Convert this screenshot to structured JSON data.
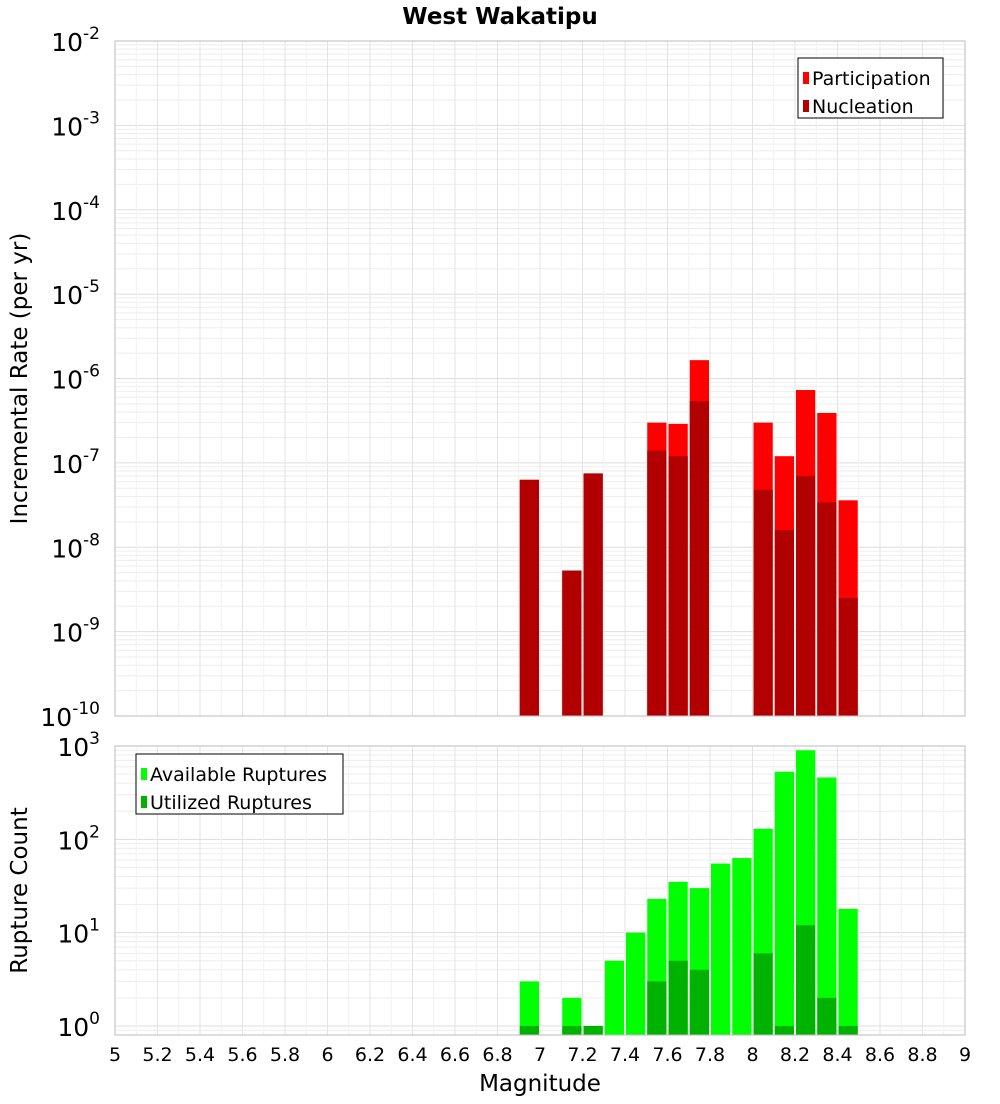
{
  "title": "West Wakatipu",
  "xlabel": "Magnitude",
  "x_ticks": [
    "5",
    "5.2",
    "5.4",
    "5.6",
    "5.8",
    "6",
    "6.2",
    "6.4",
    "6.6",
    "6.8",
    "7",
    "7.2",
    "7.4",
    "7.6",
    "7.8",
    "8",
    "8.2",
    "8.4",
    "8.6",
    "8.8",
    "9"
  ],
  "colors": {
    "participation": "#ff0000",
    "nucleation": "#b20000",
    "available": "#00ff00",
    "utilized": "#00b200",
    "grid": "#e8e8e8",
    "frame": "#bbbbbb"
  },
  "chart_data": [
    {
      "type": "bar",
      "title": "West Wakatipu",
      "xlabel": "",
      "ylabel": "Incremental Rate (per yr)",
      "y_scale": "log",
      "xlim": [
        5,
        9
      ],
      "ylim": [
        1e-10,
        0.01
      ],
      "y_tick_labels": [
        {
          "base": "10",
          "exp": "-10"
        },
        {
          "base": "10",
          "exp": "-9"
        },
        {
          "base": "10",
          "exp": "-8"
        },
        {
          "base": "10",
          "exp": "-7"
        },
        {
          "base": "10",
          "exp": "-6"
        },
        {
          "base": "10",
          "exp": "-5"
        },
        {
          "base": "10",
          "exp": "-4"
        },
        {
          "base": "10",
          "exp": "-3"
        },
        {
          "base": "10",
          "exp": "-2"
        }
      ],
      "legend_position": "top-right",
      "grid": true,
      "x": [
        6.95,
        7.15,
        7.25,
        7.55,
        7.65,
        7.75,
        8.05,
        8.15,
        8.25,
        8.35,
        8.45
      ],
      "series": [
        {
          "name": "Participation",
          "color": "#ff0000",
          "values": [
            6.3e-08,
            5.3e-09,
            7.5e-08,
            3e-07,
            2.9e-07,
            1.65e-06,
            3e-07,
            1.2e-07,
            7.3e-07,
            3.9e-07,
            3.6e-08
          ]
        },
        {
          "name": "Nucleation",
          "color": "#b20000",
          "values": [
            6.3e-08,
            5.3e-09,
            7.5e-08,
            1.4e-07,
            1.2e-07,
            5.4e-07,
            4.8e-08,
            1.6e-08,
            7e-08,
            3.4e-08,
            2.5e-09
          ]
        }
      ]
    },
    {
      "type": "bar",
      "title": "",
      "xlabel": "Magnitude",
      "ylabel": "Rupture Count",
      "y_scale": "log",
      "xlim": [
        5,
        9
      ],
      "ylim": [
        0.8,
        1000
      ],
      "y_tick_labels": [
        {
          "base": "10",
          "exp": "0"
        },
        {
          "base": "10",
          "exp": "1"
        },
        {
          "base": "10",
          "exp": "2"
        },
        {
          "base": "10",
          "exp": "3"
        }
      ],
      "legend_position": "top-left",
      "grid": true,
      "x": [
        6.95,
        7.15,
        7.25,
        7.35,
        7.45,
        7.55,
        7.65,
        7.75,
        7.85,
        7.95,
        8.05,
        8.15,
        8.25,
        8.35,
        8.45
      ],
      "series": [
        {
          "name": "Available Ruptures",
          "color": "#00ff00",
          "values": [
            3,
            2,
            1,
            5,
            10,
            23,
            35,
            30,
            55,
            63,
            130,
            530,
            900,
            460,
            18
          ]
        },
        {
          "name": "Utilized Ruptures",
          "color": "#00b200",
          "values": [
            1,
            1,
            1,
            0,
            0,
            3,
            5,
            4,
            0,
            0,
            6,
            1,
            12,
            2,
            1
          ]
        }
      ]
    }
  ]
}
